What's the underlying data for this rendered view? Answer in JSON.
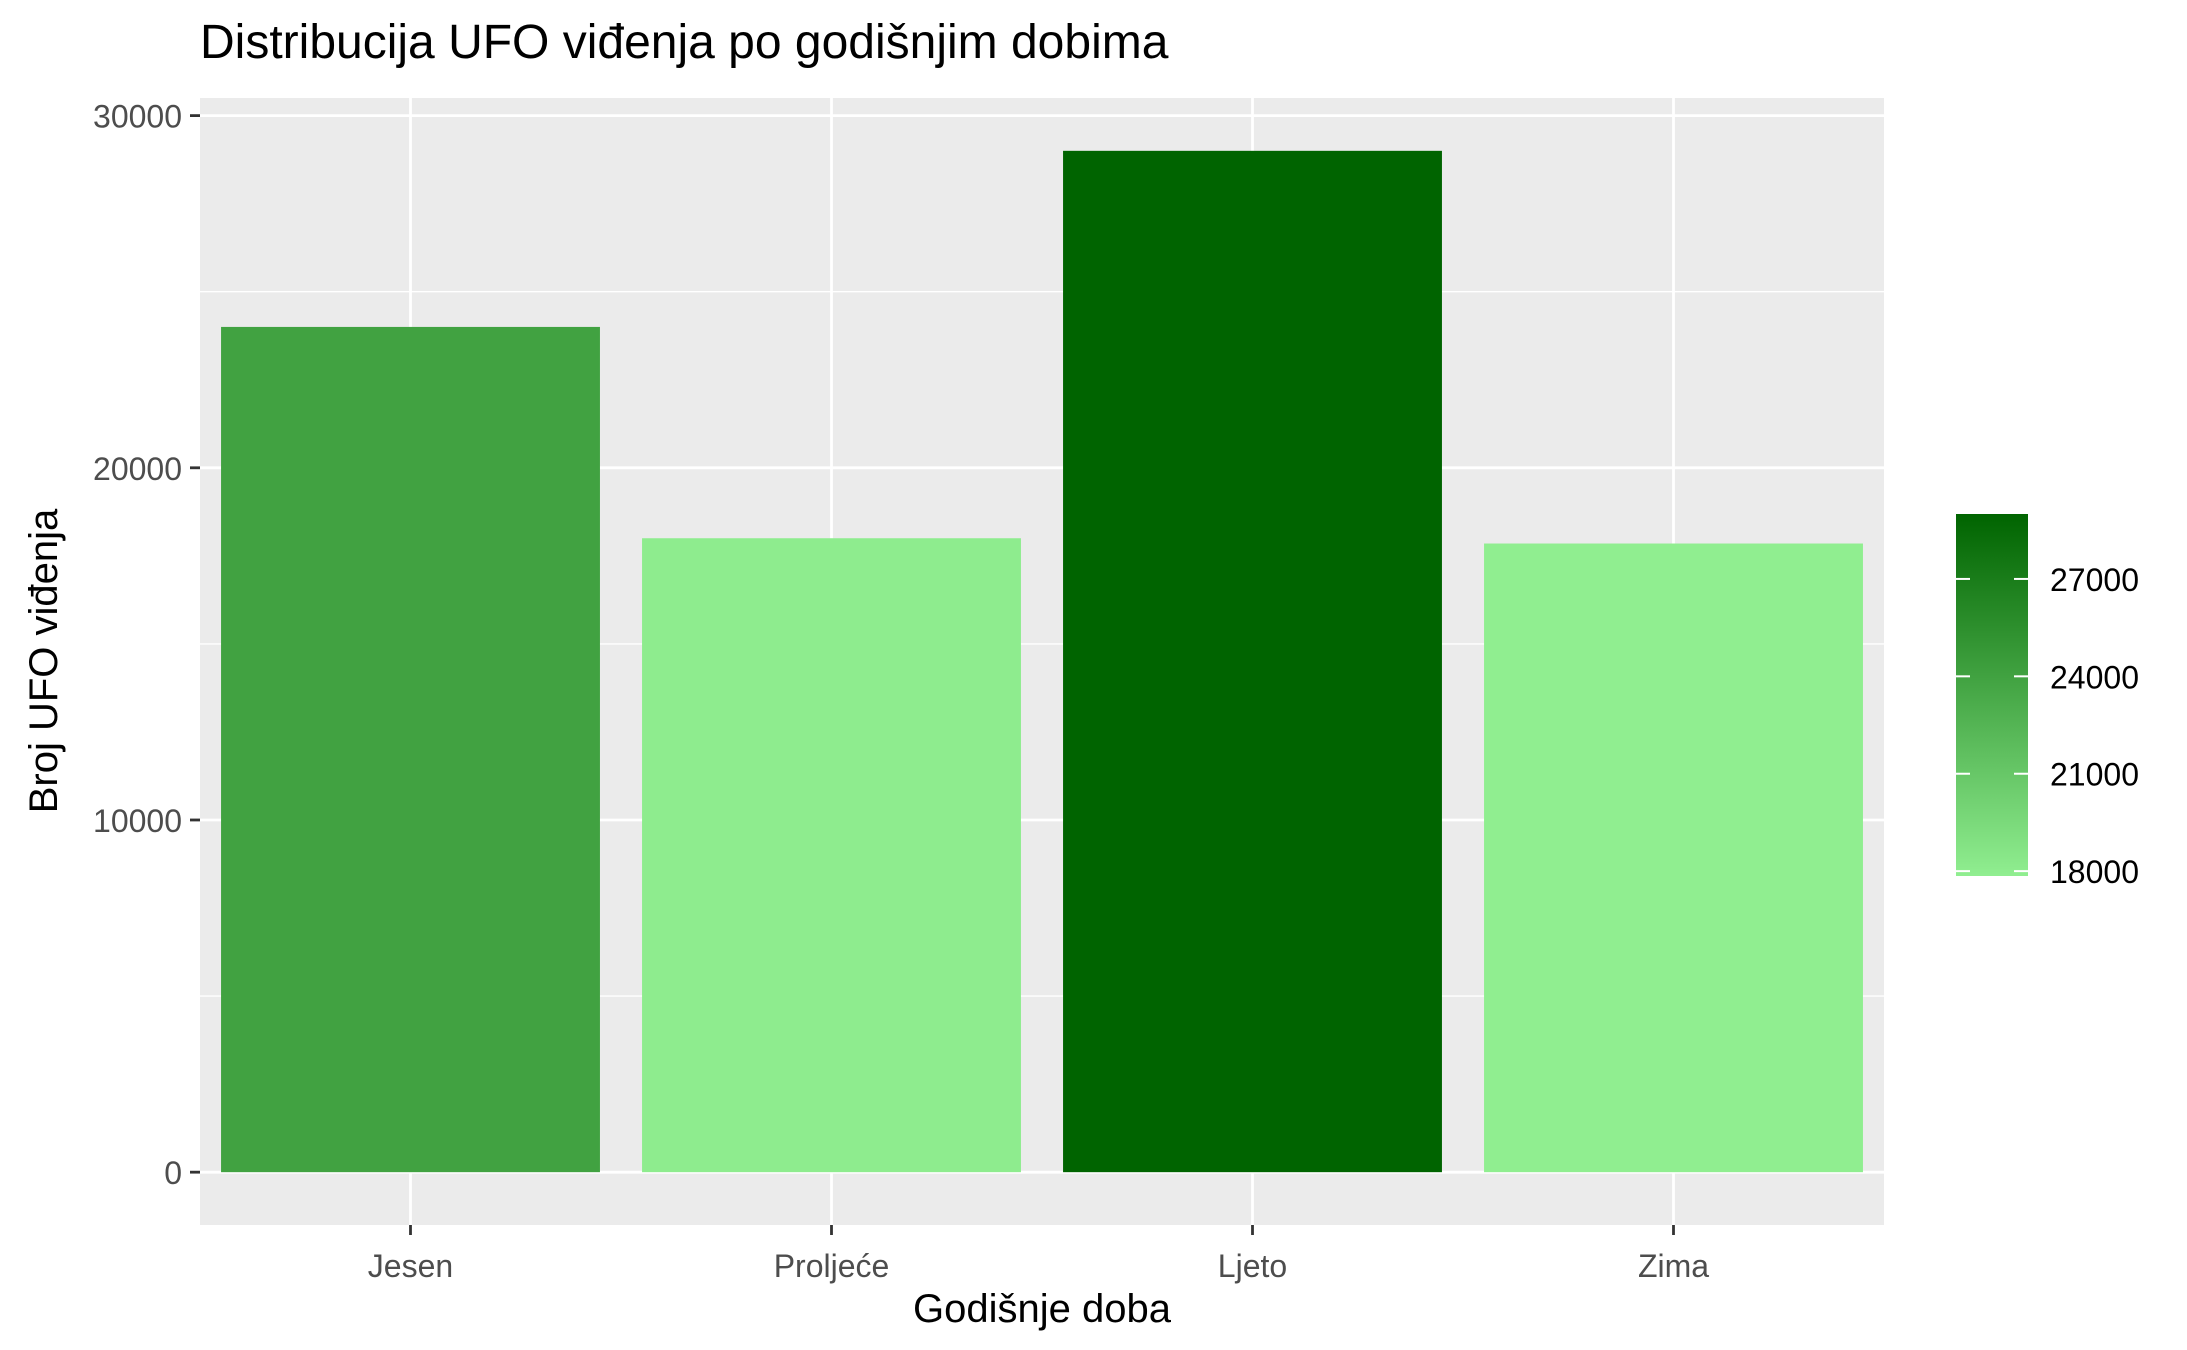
{
  "chart_data": {
    "type": "bar",
    "title": "Distribucija UFO viđenja po godišnjim dobima",
    "xlabel": "Godišnje doba",
    "ylabel": "Broj UFO viđenja",
    "categories": [
      "Jesen",
      "Proljeće",
      "Ljeto",
      "Zima"
    ],
    "values": [
      24000,
      18000,
      29000,
      17850
    ],
    "ylim": [
      -1500,
      30500
    ],
    "yticks": [
      0,
      10000,
      20000,
      30000
    ],
    "ytick_labels": [
      "0",
      "10000",
      "20000",
      "30000"
    ],
    "grid": true,
    "panel_background": "#ebebeb",
    "legend": {
      "type": "colorbar",
      "placement": "right",
      "range": [
        17850,
        29000
      ],
      "ticks": [
        18000,
        21000,
        24000,
        27000
      ],
      "tick_labels": [
        "18000",
        "21000",
        "24000",
        "27000"
      ],
      "low_color": "#90ee90",
      "high_color": "#006400"
    }
  }
}
